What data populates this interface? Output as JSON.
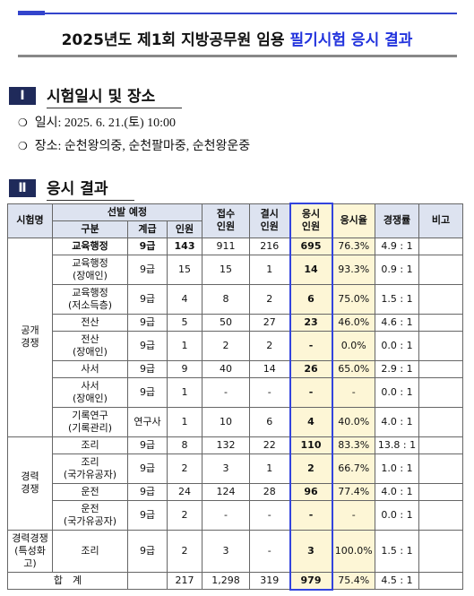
{
  "header": {
    "title_main": "2025년도 제1회 지방공무원 임용",
    "title_highlight": "필기시험 응시 결과"
  },
  "section1": {
    "numeral": "Ⅰ",
    "heading": "시험일시 및 장소",
    "bullet": "❍",
    "items": [
      "일시: 2025. 6. 21.(토) 10:00",
      "장소: 순천왕의중, 순천팔마중, 순천왕운중"
    ]
  },
  "section2": {
    "numeral": "Ⅱ",
    "heading": "응시 결과"
  },
  "table": {
    "head": {
      "exam": "시험명",
      "plan": "선발 예정",
      "cat": "구분",
      "grade": "계급",
      "count": "인원",
      "applied": [
        "접수",
        "인원"
      ],
      "absent": [
        "결시",
        "인원"
      ],
      "took": [
        "응시",
        "인원"
      ],
      "rate": "응시율",
      "comp": "경쟁률",
      "note": "비고"
    },
    "groups": [
      {
        "name": [
          "공개",
          "경쟁"
        ],
        "rows": [
          [
            [
              "교육행정"
            ],
            "9급",
            "143",
            "911",
            "216",
            "695",
            "76.3%",
            "4.9 : 1"
          ],
          [
            [
              "교육행정",
              "(장애인)"
            ],
            "9급",
            "15",
            "15",
            "1",
            "14",
            "93.3%",
            "0.9 : 1"
          ],
          [
            [
              "교육행정",
              "(저소득층)"
            ],
            "9급",
            "4",
            "8",
            "2",
            "6",
            "75.0%",
            "1.5 : 1"
          ],
          [
            [
              "전산"
            ],
            "9급",
            "5",
            "50",
            "27",
            "23",
            "46.0%",
            "4.6 : 1"
          ],
          [
            [
              "전산",
              "(장애인)"
            ],
            "9급",
            "1",
            "2",
            "2",
            "-",
            "0.0%",
            "0.0 : 1"
          ],
          [
            [
              "사서"
            ],
            "9급",
            "9",
            "40",
            "14",
            "26",
            "65.0%",
            "2.9 : 1"
          ],
          [
            [
              "사서",
              "(장애인)"
            ],
            "9급",
            "1",
            "-",
            "-",
            "-",
            "-",
            "0.0 : 1"
          ],
          [
            [
              "기록연구",
              "(기록관리)"
            ],
            "연구사",
            "1",
            "10",
            "6",
            "4",
            "40.0%",
            "4.0 : 1"
          ]
        ]
      },
      {
        "name": [
          "경력",
          "경쟁"
        ],
        "rows": [
          [
            [
              "조리"
            ],
            "9급",
            "8",
            "132",
            "22",
            "110",
            "83.3%",
            "13.8 : 1"
          ],
          [
            [
              "조리",
              "(국가유공자)"
            ],
            "9급",
            "2",
            "3",
            "1",
            "2",
            "66.7%",
            "1.0 : 1"
          ],
          [
            [
              "운전"
            ],
            "9급",
            "24",
            "124",
            "28",
            "96",
            "77.4%",
            "4.0 : 1"
          ],
          [
            [
              "운전",
              "(국가유공자)"
            ],
            "9급",
            "2",
            "-",
            "-",
            "-",
            "-",
            "0.0 : 1"
          ]
        ]
      },
      {
        "name": [
          "경력경쟁",
          "(특성화고)"
        ],
        "rows": [
          [
            [
              "조리"
            ],
            "9급",
            "2",
            "3",
            "-",
            "3",
            "100.0%",
            "1.5 : 1"
          ]
        ]
      }
    ],
    "total": {
      "label": "합　계",
      "count": "217",
      "applied": "1,298",
      "absent": "319",
      "took": "979",
      "rate": "75.4%",
      "comp": "4.5 : 1"
    }
  }
}
